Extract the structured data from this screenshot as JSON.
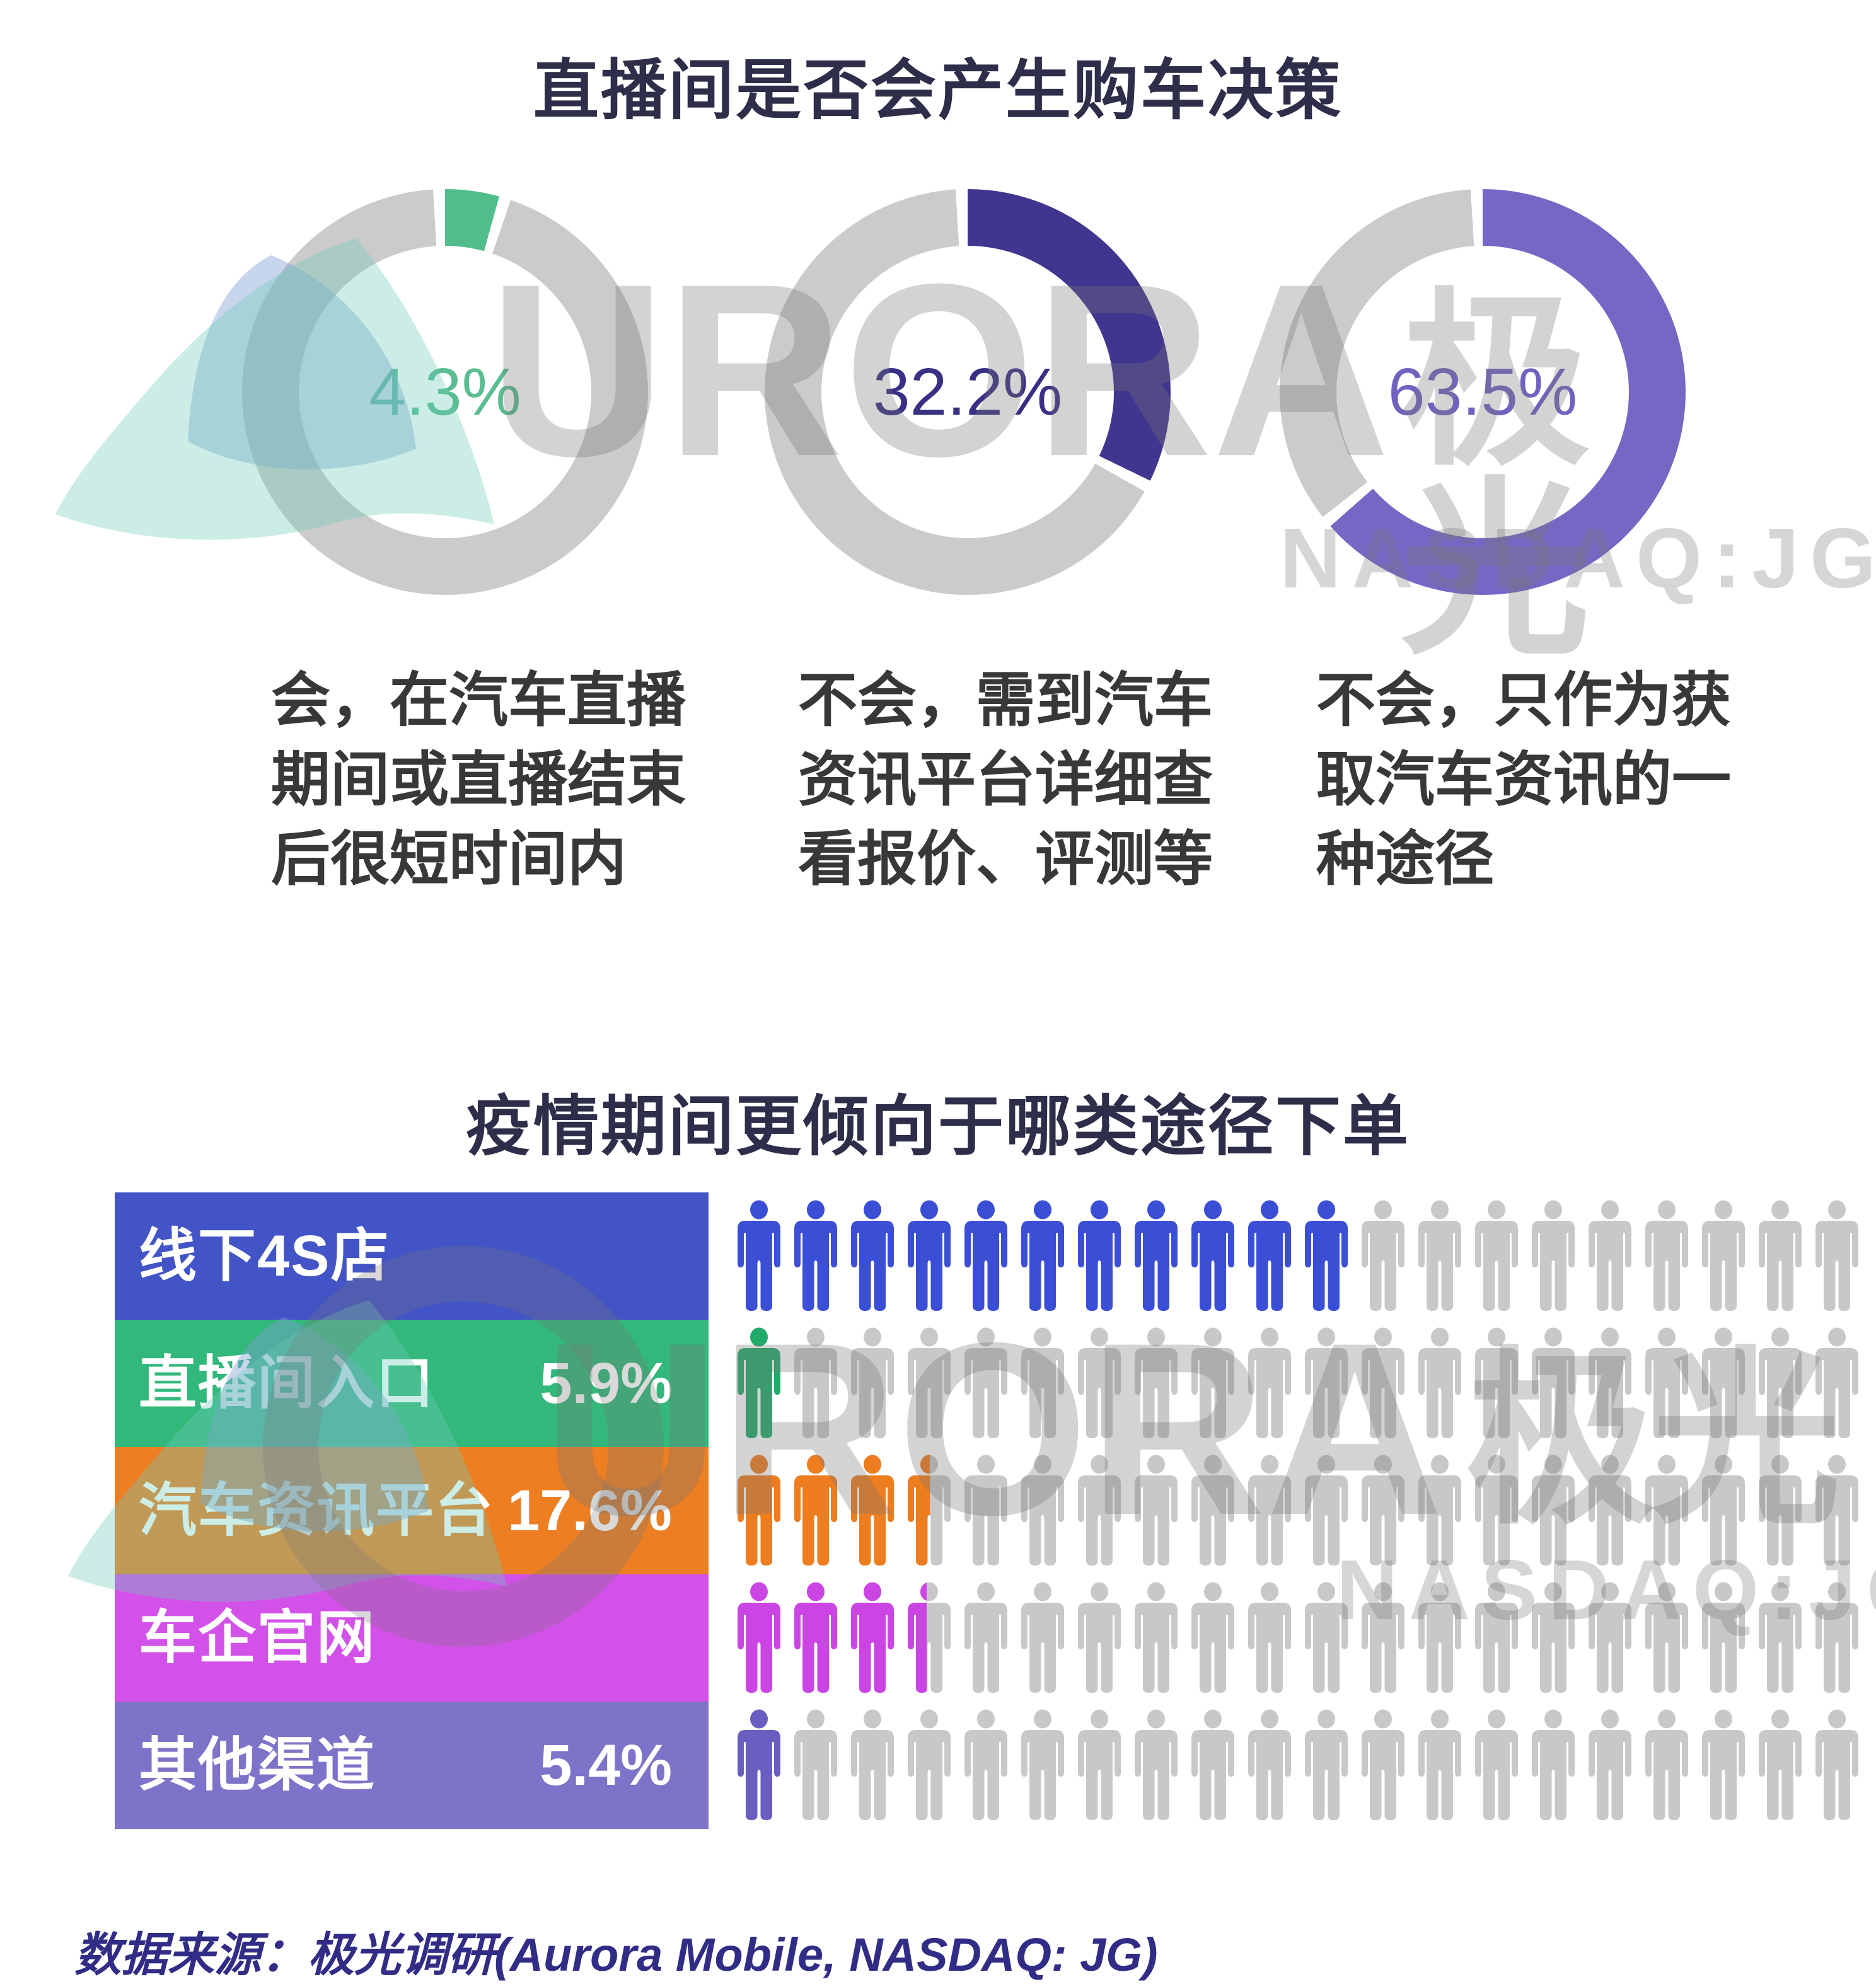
{
  "chart_data": [
    {
      "type": "pie",
      "title": "直播间是否会产生购车决策",
      "slices": [
        {
          "label": "会，在汽车直播期间或直播结束后很短时间内",
          "value": 4.3,
          "color": "#50bd8a"
        },
        {
          "label": "不会，需到汽车资讯平台详细查看报价、评测等",
          "value": 32.2,
          "color": "#41368f"
        },
        {
          "label": "不会，只作为获取汽车资讯的一种途径",
          "value": 63.5,
          "color": "#7568c5"
        }
      ],
      "note": "three donut gauges, remainder gray, value shown in center"
    },
    {
      "type": "bar",
      "title": "疫情期间更倾向于哪类途径下单",
      "unit": "percent of 20-person pictogram row",
      "categories": [
        "线下4S店",
        "直播间入口",
        "汽车资讯平台",
        "车企官网",
        "其他渠道"
      ],
      "values": [
        55,
        5.9,
        17.6,
        17.2,
        5.4
      ],
      "shown_value_labels": [
        "",
        "5.9%",
        "17.6%",
        "",
        "5.4%"
      ],
      "colors": [
        "#4254c6",
        "#33b87b",
        "#ee7e22",
        "#d251e8",
        "#7d73c8"
      ]
    }
  ],
  "decision": {
    "title": "直播间是否会产生购车决策",
    "items": [
      {
        "pct_label": "4.3%",
        "pct": 4.3,
        "arc_color": "#50bd8a",
        "text_color": "#5abd90",
        "desc": "会，在汽车直播\n期间或直播结束\n后很短时间内"
      },
      {
        "pct_label": "32.2%",
        "pct": 32.2,
        "arc_color": "#41368f",
        "text_color": "#393085",
        "desc": "不会，需到汽车\n资讯平台详细查\n看报价、评测等"
      },
      {
        "pct_label": "63.5%",
        "pct": 63.5,
        "arc_color": "#7568c5",
        "text_color": "#7063c0",
        "desc": "不会，只作为获\n取汽车资讯的一\n种途径"
      }
    ]
  },
  "channels": {
    "title": "疫情期间更倾向于哪类途径下单",
    "total_icons": 20,
    "rows": [
      {
        "label": "线下4S店",
        "value_label": "",
        "pct": 55,
        "block_color": "#4254c6",
        "icon_color": "#3b4ed6"
      },
      {
        "label": "直播间入口",
        "value_label": "5.9%",
        "pct": 5.9,
        "block_color": "#33b87b",
        "icon_color": "#22aa6b"
      },
      {
        "label": "汽车资讯平台",
        "value_label": "17.6%",
        "pct": 17.6,
        "block_color": "#ee7e22",
        "icon_color": "#ed7d1e"
      },
      {
        "label": "车企官网",
        "value_label": "",
        "pct": 17.2,
        "block_color": "#d251e8",
        "icon_color": "#cb45e5"
      },
      {
        "label": "其他渠道",
        "value_label": "5.4%",
        "pct": 5.4,
        "block_color": "#7d73c8",
        "icon_color": "#6a5fc0"
      }
    ]
  },
  "watermark": {
    "brand_latin": "URORA",
    "brand_cjk": "极光",
    "ticker": "NASDAQ:JG"
  },
  "footer": {
    "text": "数据来源：极光调研(Aurora Mobile, NASDAQ: JG)"
  }
}
